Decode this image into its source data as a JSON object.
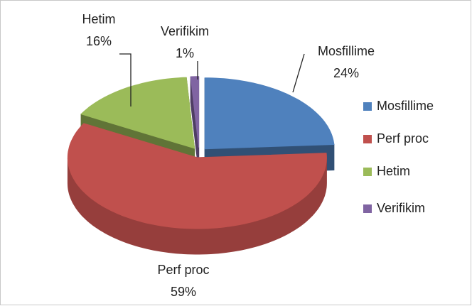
{
  "chart_data": {
    "type": "pie",
    "three_d": true,
    "exploded": true,
    "categories": [
      "Mosfillime",
      "Perf proc",
      "Hetim",
      "Verifikim"
    ],
    "values": [
      24,
      59,
      16,
      1
    ],
    "value_labels": [
      "24%",
      "59%",
      "16%",
      "1%"
    ],
    "colors": [
      "#4f81bd",
      "#c0504d",
      "#9bbb59",
      "#8064a2"
    ],
    "legend": "right"
  }
}
